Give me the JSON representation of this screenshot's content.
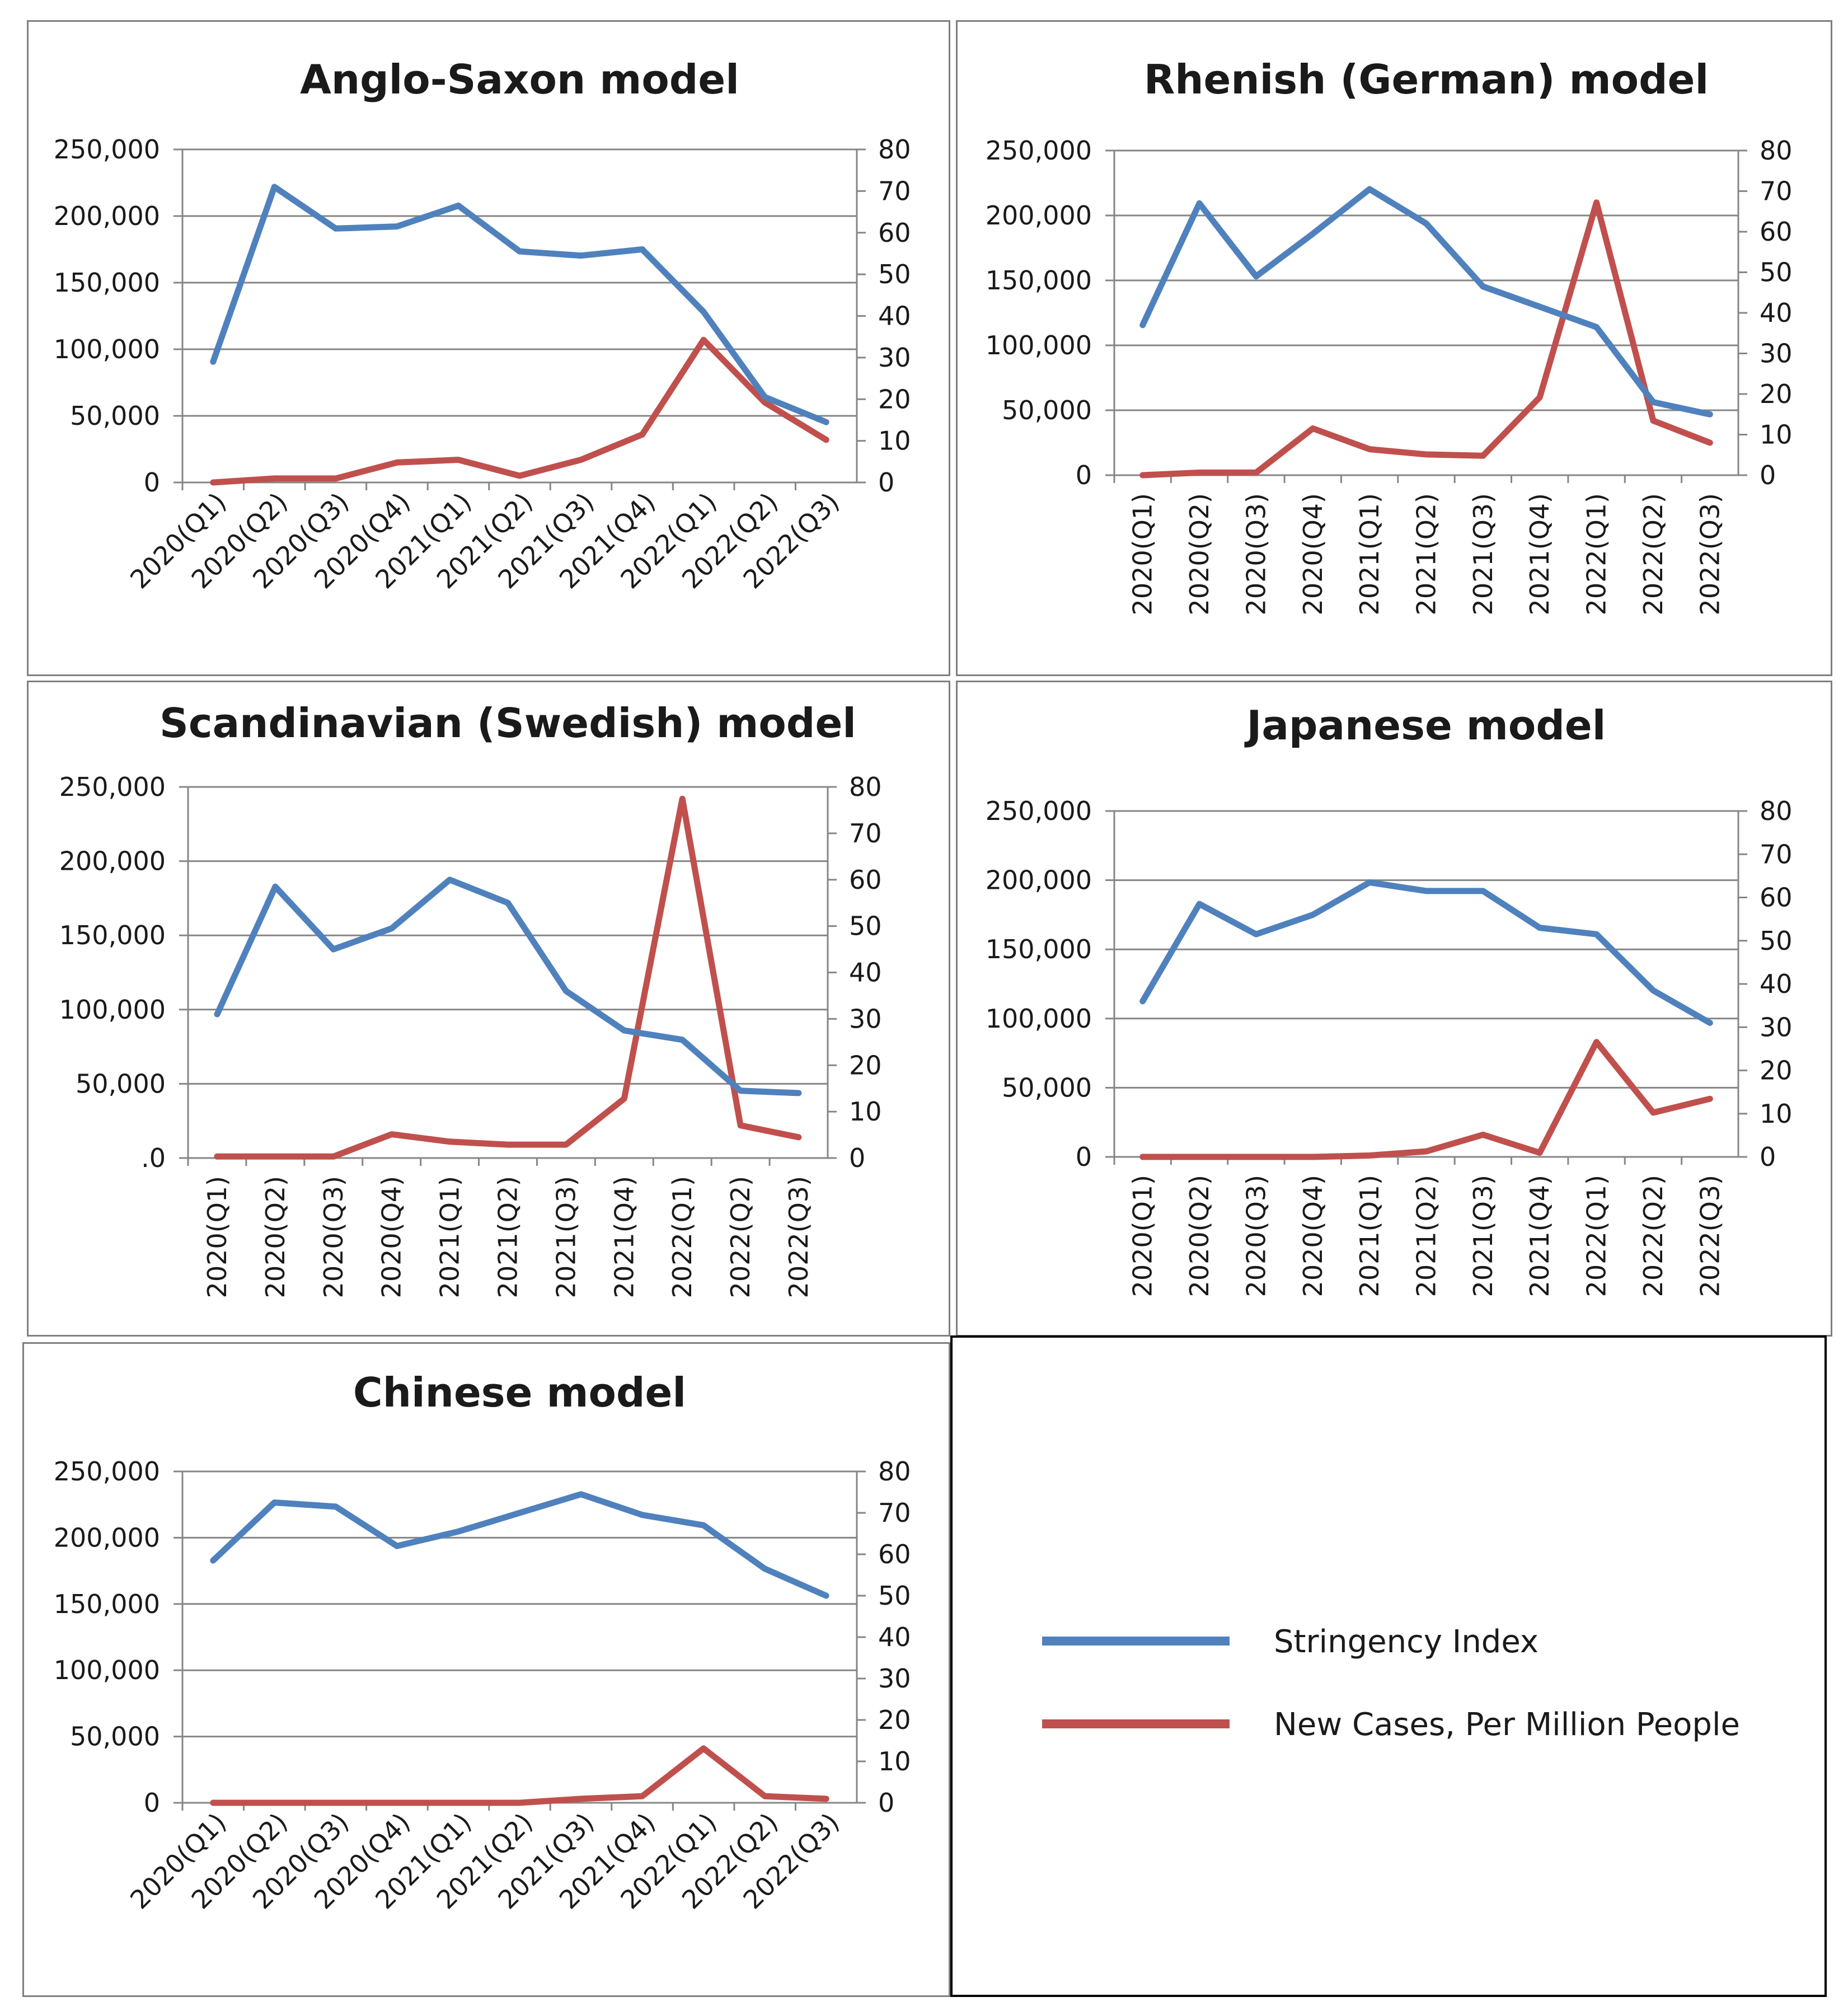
{
  "colors": {
    "stringency": "#4f81bd",
    "cases": "#c0504d",
    "grid": "#868686",
    "axis": "#868686",
    "text": "#1a1a1a"
  },
  "legend": {
    "items": [
      {
        "label": "Stringency Index",
        "color": "#4f81bd",
        "series": "stringency"
      },
      {
        "label": "New Cases, Per Million People",
        "color": "#c0504d",
        "series": "cases"
      }
    ]
  },
  "chart_data": [
    {
      "type": "line",
      "title": "Anglo-Saxon model",
      "categories": [
        "2020(Q1)",
        "2020(Q2)",
        "2020(Q3)",
        "2020(Q4)",
        "2021(Q1)",
        "2021(Q2)",
        "2021(Q3)",
        "2021(Q4)",
        "2022(Q1)",
        "2022(Q2)",
        "2022(Q3)"
      ],
      "left_axis": {
        "ticks": [
          "0",
          "50,000",
          "100,000",
          "150,000",
          "200,000",
          "250,000"
        ],
        "range": [
          0,
          250000
        ]
      },
      "right_axis": {
        "ticks": [
          "0",
          "10",
          "20",
          "30",
          "40",
          "50",
          "60",
          "70",
          "80"
        ],
        "range": [
          0,
          80
        ]
      },
      "series": [
        {
          "name": "Stringency Index",
          "axis": "right",
          "values": [
            29,
            71,
            61,
            61.5,
            66.5,
            55.5,
            54.5,
            56,
            41,
            20.5,
            14.5
          ]
        },
        {
          "name": "New Cases, Per Million People",
          "axis": "left",
          "values": [
            0,
            3000,
            3000,
            15000,
            17000,
            5000,
            17000,
            36000,
            107000,
            60000,
            32000
          ]
        }
      ]
    },
    {
      "type": "line",
      "title": "Rhenish (German) model",
      "categories": [
        "2020(Q1)",
        "2020(Q2)",
        "2020(Q3)",
        "2020(Q4)",
        "2021(Q1)",
        "2021(Q2)",
        "2021(Q3)",
        "2021(Q4)",
        "2022(Q1)",
        "2022(Q2)",
        "2022(Q3)"
      ],
      "left_axis": {
        "ticks": [
          "0",
          "50,000",
          "100,000",
          "150,000",
          "200,000",
          "250,000"
        ],
        "range": [
          0,
          250000
        ]
      },
      "right_axis": {
        "ticks": [
          "0",
          "10",
          "20",
          "30",
          "40",
          "50",
          "60",
          "70",
          "80"
        ],
        "range": [
          0,
          80
        ]
      },
      "series": [
        {
          "name": "Stringency Index",
          "axis": "right",
          "values": [
            37,
            67,
            49,
            59.5,
            70.5,
            62,
            46.5,
            41.5,
            36.5,
            18,
            15
          ]
        },
        {
          "name": "New Cases, Per Million People",
          "axis": "left",
          "values": [
            0,
            2000,
            2000,
            36000,
            20000,
            16000,
            15000,
            60000,
            210000,
            42000,
            25000
          ]
        }
      ]
    },
    {
      "type": "line",
      "title": "Scandinavian (Swedish) model",
      "categories": [
        "2020(Q1)",
        "2020(Q2)",
        "2020(Q3)",
        "2020(Q4)",
        "2021(Q1)",
        "2021(Q2)",
        "2021(Q3)",
        "2021(Q4)",
        "2022(Q1)",
        "2022(Q2)",
        "2022(Q3)"
      ],
      "left_axis": {
        "ticks": [
          ".0",
          "50,000",
          "100,000",
          "150,000",
          "200,000",
          "250,000"
        ],
        "range": [
          0,
          250000
        ]
      },
      "right_axis": {
        "ticks": [
          "0",
          "10",
          "20",
          "30",
          "40",
          "50",
          "60",
          "70",
          "80"
        ],
        "range": [
          0,
          80
        ]
      },
      "series": [
        {
          "name": "Stringency Index",
          "axis": "right",
          "values": [
            31,
            58.5,
            45,
            49.5,
            60,
            55,
            36,
            27.5,
            25.5,
            14.5,
            14
          ]
        },
        {
          "name": "New Cases, Per Million People",
          "axis": "left",
          "values": [
            1000,
            1000,
            1000,
            16000,
            11000,
            9000,
            9000,
            40000,
            242000,
            22000,
            14000
          ]
        }
      ]
    },
    {
      "type": "line",
      "title": "Japanese model",
      "categories": [
        "2020(Q1)",
        "2020(Q2)",
        "2020(Q3)",
        "2020(Q4)",
        "2021(Q1)",
        "2021(Q2)",
        "2021(Q3)",
        "2021(Q4)",
        "2022(Q1)",
        "2022(Q2)",
        "2022(Q3)"
      ],
      "left_axis": {
        "ticks": [
          "0",
          "50,000",
          "100,000",
          "150,000",
          "200,000",
          "250,000"
        ],
        "range": [
          0,
          250000
        ]
      },
      "right_axis": {
        "ticks": [
          "0",
          "10",
          "20",
          "30",
          "40",
          "50",
          "60",
          "70",
          "80"
        ],
        "range": [
          0,
          80
        ]
      },
      "series": [
        {
          "name": "Stringency Index",
          "axis": "right",
          "values": [
            36,
            58.5,
            51.5,
            56,
            63.5,
            61.5,
            61.5,
            53,
            51.5,
            38.5,
            31
          ]
        },
        {
          "name": "New Cases, Per Million People",
          "axis": "left",
          "values": [
            0,
            0,
            0,
            0,
            1000,
            4000,
            16000,
            3000,
            83000,
            32000,
            42000
          ]
        }
      ]
    },
    {
      "type": "line",
      "title": "Chinese model",
      "categories": [
        "2020(Q1)",
        "2020(Q2)",
        "2020(Q3)",
        "2020(Q4)",
        "2021(Q1)",
        "2021(Q2)",
        "2021(Q3)",
        "2021(Q4)",
        "2022(Q1)",
        "2022(Q2)",
        "2022(Q3)"
      ],
      "left_axis": {
        "ticks": [
          "0",
          "50,000",
          "100,000",
          "150,000",
          "200,000",
          "250,000"
        ],
        "range": [
          0,
          250000
        ]
      },
      "right_axis": {
        "ticks": [
          "0",
          "10",
          "20",
          "30",
          "40",
          "50",
          "60",
          "70",
          "80"
        ],
        "range": [
          0,
          80
        ]
      },
      "series": [
        {
          "name": "Stringency Index",
          "axis": "right",
          "values": [
            58.5,
            72.5,
            71.5,
            62,
            65.5,
            70,
            74.5,
            69.5,
            67,
            56.5,
            50
          ]
        },
        {
          "name": "New Cases, Per Million People",
          "axis": "left",
          "values": [
            0,
            0,
            0,
            0,
            0,
            0,
            3000,
            5000,
            41000,
            5000,
            3000
          ]
        }
      ]
    }
  ]
}
